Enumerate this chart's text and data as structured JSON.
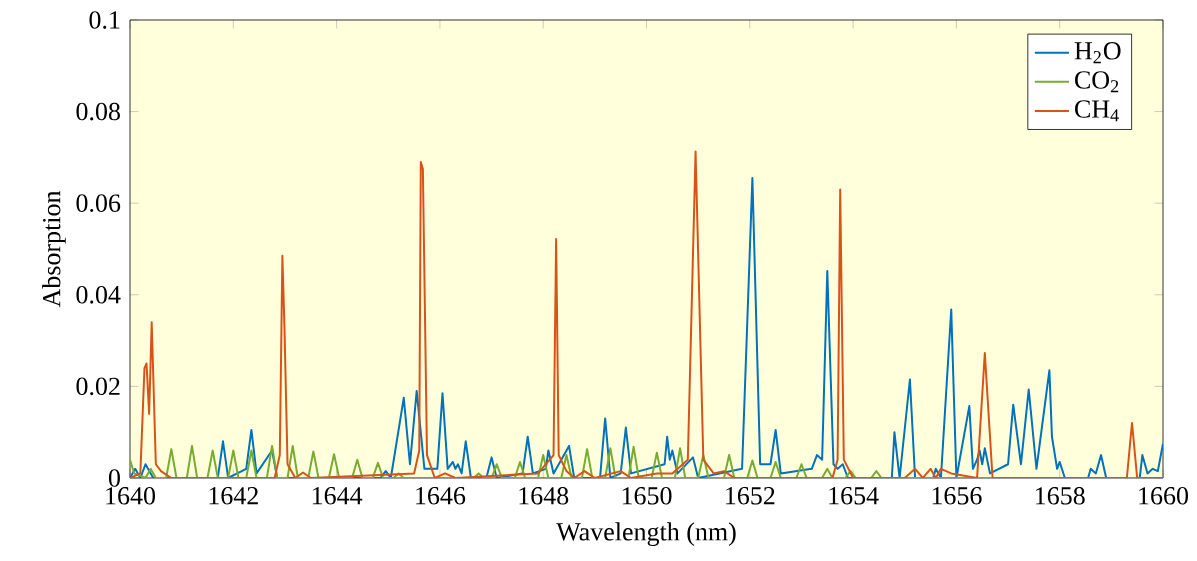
{
  "chart_data": {
    "type": "line",
    "xlabel": "Wavelength (nm)",
    "ylabel": "Absorption",
    "xlim": [
      1640,
      1660
    ],
    "ylim": [
      0,
      0.1
    ],
    "xticks": [
      1640,
      1642,
      1644,
      1646,
      1648,
      1650,
      1652,
      1654,
      1656,
      1658,
      1660
    ],
    "yticks": [
      0,
      0.02,
      0.04,
      0.06,
      0.08,
      0.1
    ],
    "legend": "top right",
    "grid": false,
    "marker": "none",
    "line_style": "solid",
    "series": [
      {
        "name": "H$_{2}$O",
        "color": "#0072bd",
        "x": [
          1640,
          1640.1,
          1640.2,
          1640.3,
          1640.45,
          1641.7,
          1641.8,
          1641.9,
          1642.25,
          1642.35,
          1642.45,
          1642.75,
          1642.85,
          1644.85,
          1644.95,
          1645.05,
          1645.3,
          1645.42,
          1645.55,
          1645.7,
          1645.95,
          1646.05,
          1646.15,
          1646.25,
          1646.3,
          1646.35,
          1646.42,
          1646.5,
          1646.6,
          1646.9,
          1647.0,
          1647.1,
          1647.6,
          1647.7,
          1647.8,
          1648.05,
          1648.1,
          1648.2,
          1648.5,
          1648.6,
          1649.1,
          1649.2,
          1649.3,
          1649.5,
          1649.6,
          1649.7,
          1650.35,
          1650.4,
          1650.45,
          1650.5,
          1650.6,
          1650.9,
          1651.0,
          1651.85,
          1652.05,
          1652.2,
          1652.4,
          1652.5,
          1652.6,
          1653.2,
          1653.3,
          1653.4,
          1653.5,
          1653.62,
          1653.7,
          1653.8,
          1653.9,
          1654.75,
          1654.8,
          1654.9,
          1655.1,
          1655.2,
          1655.55,
          1655.6,
          1655.7,
          1655.9,
          1656.0,
          1656.25,
          1656.32,
          1656.4,
          1656.45,
          1656.5,
          1656.55,
          1656.65,
          1657.0,
          1657.1,
          1657.25,
          1657.4,
          1657.55,
          1657.8,
          1657.85,
          1657.95,
          1658.0,
          1658.1,
          1658.55,
          1658.6,
          1658.7,
          1658.8,
          1658.9,
          1659.55,
          1659.6,
          1659.7,
          1659.8,
          1659.9,
          1660
        ],
        "values": [
          0,
          0.002,
          0,
          0.003,
          0,
          0,
          0.008,
          0,
          0.002,
          0.0105,
          0.001,
          0.006,
          0,
          0,
          0.0015,
          0,
          0.0175,
          0.003,
          0.019,
          0.002,
          0.002,
          0.0185,
          0.002,
          0.0035,
          0.002,
          0.003,
          0.001,
          0.008,
          0,
          0,
          0.0045,
          0,
          0.001,
          0.009,
          0.001,
          0.002,
          0.006,
          0.001,
          0.007,
          0,
          0,
          0.013,
          0,
          0.001,
          0.011,
          0.001,
          0.003,
          0.009,
          0.004,
          0.006,
          0.001,
          0.0045,
          0,
          0.002,
          0.0655,
          0.003,
          0.003,
          0.0105,
          0.001,
          0.002,
          0.005,
          0.004,
          0.0452,
          0.003,
          0.002,
          0.003,
          0,
          0,
          0.01,
          0,
          0.0215,
          0,
          0,
          0.002,
          0,
          0.0368,
          0,
          0.0157,
          0.002,
          0.004,
          0.006,
          0.003,
          0.0065,
          0.001,
          0.003,
          0.016,
          0.003,
          0.0193,
          0.002,
          0.0235,
          0.009,
          0.002,
          0.0035,
          0,
          0,
          0.002,
          0.001,
          0.005,
          0,
          0,
          0.005,
          0.001,
          0.002,
          0.0015,
          0.0075
        ]
      },
      {
        "name": "CO$_{2}$",
        "color": "#77ac30",
        "x": [
          1640,
          1640.08,
          1640.3,
          1640.4,
          1640.5,
          1640.7,
          1640.8,
          1640.9,
          1641.1,
          1641.2,
          1641.3,
          1641.5,
          1641.6,
          1641.7,
          1641.9,
          1642.0,
          1642.1,
          1642.25,
          1642.35,
          1642.45,
          1642.65,
          1642.75,
          1642.85,
          1643.05,
          1643.15,
          1643.25,
          1643.45,
          1643.55,
          1643.65,
          1643.85,
          1643.95,
          1644.05,
          1644.3,
          1644.4,
          1644.5,
          1644.7,
          1644.8,
          1644.9,
          1645.1,
          1645.2,
          1645.3,
          1646.65,
          1646.75,
          1646.85,
          1647.0,
          1647.1,
          1647.2,
          1647.45,
          1647.55,
          1647.65,
          1647.9,
          1648.0,
          1648.1,
          1648.35,
          1648.45,
          1648.55,
          1648.75,
          1648.85,
          1648.95,
          1649.2,
          1649.3,
          1649.4,
          1649.65,
          1649.75,
          1649.85,
          1650.1,
          1650.2,
          1650.3,
          1650.55,
          1650.65,
          1650.75,
          1651.0,
          1651.1,
          1651.2,
          1651.5,
          1651.6,
          1651.7,
          1651.95,
          1652.05,
          1652.15,
          1652.4,
          1652.5,
          1652.6,
          1652.9,
          1653.0,
          1653.1,
          1653.4,
          1653.5,
          1653.6,
          1653.85,
          1653.95,
          1654.05,
          1654.35,
          1654.45,
          1654.55,
          1660
        ],
        "values": [
          0.004,
          0.001,
          0,
          0.002,
          0,
          0,
          0.0063,
          0,
          0,
          0.007,
          0,
          0,
          0.006,
          0,
          0,
          0.006,
          0,
          0,
          0.006,
          0,
          0,
          0.007,
          0,
          0,
          0.007,
          0,
          0,
          0.0058,
          0,
          0,
          0.0052,
          0,
          0,
          0.004,
          0,
          0,
          0.0033,
          0,
          0,
          0.001,
          0,
          0,
          0.001,
          0,
          0,
          0.003,
          0,
          0,
          0.0035,
          0,
          0,
          0.005,
          0,
          0,
          0.005,
          0,
          0,
          0.0063,
          0,
          0,
          0.0065,
          0,
          0,
          0.0068,
          0,
          0,
          0.0055,
          0,
          0,
          0.0065,
          0,
          0,
          0.005,
          0,
          0,
          0.005,
          0,
          0,
          0.0038,
          0,
          0,
          0.0035,
          0,
          0,
          0.003,
          0,
          0,
          0.002,
          0,
          0,
          0.0015,
          0,
          0,
          0.0015,
          0,
          0
        ]
      },
      {
        "name": "CH$_{4}$",
        "color": "#d95319",
        "x": [
          1640,
          1640.2,
          1640.28,
          1640.32,
          1640.37,
          1640.42,
          1640.5,
          1640.6,
          1640.8,
          1642.8,
          1642.9,
          1642.95,
          1642.99,
          1643.05,
          1643.2,
          1643.35,
          1643.5,
          1645.5,
          1645.6,
          1645.63,
          1645.67,
          1645.75,
          1645.9,
          1646.1,
          1646.3,
          1647.9,
          1648.2,
          1648.25,
          1648.3,
          1648.45,
          1648.6,
          1648.8,
          1649.0,
          1649.5,
          1649.7,
          1650.2,
          1650.5,
          1650.8,
          1650.95,
          1651.1,
          1651.3,
          1651.5,
          1651.7,
          1653.6,
          1653.7,
          1653.75,
          1653.82,
          1654.0,
          1655.0,
          1655.2,
          1655.35,
          1655.5,
          1655.6,
          1655.7,
          1655.9,
          1656.4,
          1656.55,
          1656.7,
          1659.3,
          1659.4,
          1659.5,
          1660
        ],
        "values": [
          0,
          0.001,
          0.024,
          0.025,
          0.014,
          0.034,
          0.003,
          0.0015,
          0,
          0,
          0.005,
          0.0485,
          0.033,
          0.003,
          0,
          0.0012,
          0,
          0.001,
          0.006,
          0.069,
          0.0675,
          0.005,
          0,
          0.001,
          0,
          0.001,
          0.005,
          0.0522,
          0.005,
          0.0015,
          0,
          0.0015,
          0,
          0.0015,
          0,
          0.001,
          0.001,
          0.004,
          0.0713,
          0.004,
          0.001,
          0.0015,
          0,
          0,
          0.004,
          0.063,
          0.004,
          0,
          0,
          0.002,
          0,
          0.002,
          0,
          0.002,
          0.001,
          0,
          0.0273,
          0,
          0,
          0.012,
          0,
          0
        ]
      }
    ]
  }
}
